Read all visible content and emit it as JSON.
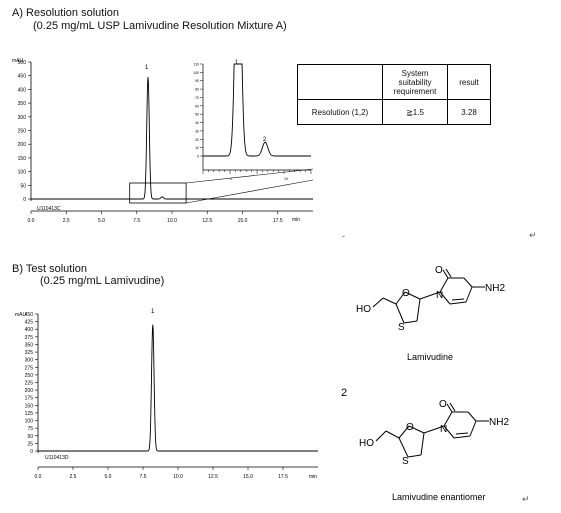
{
  "sections": {
    "a": {
      "title": "A) Resolution solution",
      "subtitle": "(0.25 mg/mL USP Lamivudine Resolution Mixture A)"
    },
    "b": {
      "title": "B) Test solution",
      "subtitle": "(0.25 mg/mL Lamivudine)"
    }
  },
  "suitability_table": {
    "header": [
      "",
      "System suitability requirement",
      "result"
    ],
    "rows": [
      {
        "label": "Resolution (1,2)",
        "requirement": "≧1.5",
        "result": "3.28"
      }
    ]
  },
  "structures": {
    "lamivudine": {
      "caption": "Lamivudine",
      "labels": {
        "ho": "HO",
        "o_ring": "O",
        "s_ring": "S",
        "n": "N",
        "o_carbonyl": "O",
        "nh2": "NH2"
      }
    },
    "enantiomer": {
      "caption": "Lamivudine enantiomer",
      "number": "2",
      "labels": {
        "ho": "HO",
        "o_ring": "O",
        "s_ring": "S",
        "n": "N",
        "o_carbonyl": "O",
        "nh2": "NH2"
      }
    }
  },
  "misc_marks": {
    "return1": "↵",
    "return2": "↵",
    "dash": "-"
  },
  "chart_data": [
    {
      "type": "line",
      "panel": "A",
      "ylabel": "mAU",
      "xlabel": "min",
      "ylim": [
        0,
        500
      ],
      "xlim": [
        0,
        20
      ],
      "yticks": [
        0,
        50,
        100,
        150,
        200,
        250,
        300,
        350,
        400,
        450,
        500
      ],
      "ytick_labels": [
        "0",
        "50",
        "100",
        "150",
        "200",
        "250",
        "300",
        "350",
        "400",
        "450",
        "500"
      ],
      "xticks": [
        0,
        2.5,
        5,
        7.5,
        10,
        12.5,
        15,
        17.5
      ],
      "xtick_labels": [
        "0.0",
        "2.5",
        "5.0",
        "7.5",
        "10.0",
        "12.5",
        "15.0",
        "17.5"
      ],
      "sample_id": "U110413C",
      "peaks": [
        {
          "label": "1",
          "rt": 8.3,
          "height": 445,
          "width": 0.09
        },
        {
          "label": "2",
          "rt": 9.3,
          "height": 8,
          "width": 0.09
        }
      ],
      "inset": {
        "xlim": [
          7.0,
          11.0
        ],
        "ylim": [
          0,
          40
        ],
        "yticks": [
          0,
          10,
          20,
          30,
          40,
          50,
          60,
          70,
          80,
          90,
          100,
          110
        ],
        "x_tick_labels": [
          "1",
          "10"
        ]
      },
      "grid": false
    },
    {
      "type": "line",
      "panel": "B",
      "ylabel": "mAU",
      "xlabel": "min",
      "ylim": [
        0,
        450
      ],
      "xlim": [
        0,
        20
      ],
      "yticks": [
        0,
        25,
        50,
        75,
        100,
        125,
        150,
        175,
        200,
        225,
        250,
        275,
        300,
        325,
        350,
        375,
        400,
        425,
        450
      ],
      "ytick_labels": [
        "0",
        "25",
        "50",
        "75",
        "100",
        "125",
        "150",
        "175",
        "200",
        "225",
        "250",
        "275",
        "300",
        "325",
        "350",
        "375",
        "400",
        "425",
        "450"
      ],
      "xticks": [
        0,
        2.5,
        5,
        7.5,
        10,
        12.5,
        15,
        17.5
      ],
      "xtick_labels": [
        "0.0",
        "2.5",
        "5.0",
        "7.5",
        "10.0",
        "12.5",
        "15.0",
        "17.5"
      ],
      "sample_id": "U110413D",
      "peaks": [
        {
          "label": "1",
          "rt": 8.2,
          "height": 415,
          "width": 0.09
        }
      ],
      "grid": false
    }
  ]
}
